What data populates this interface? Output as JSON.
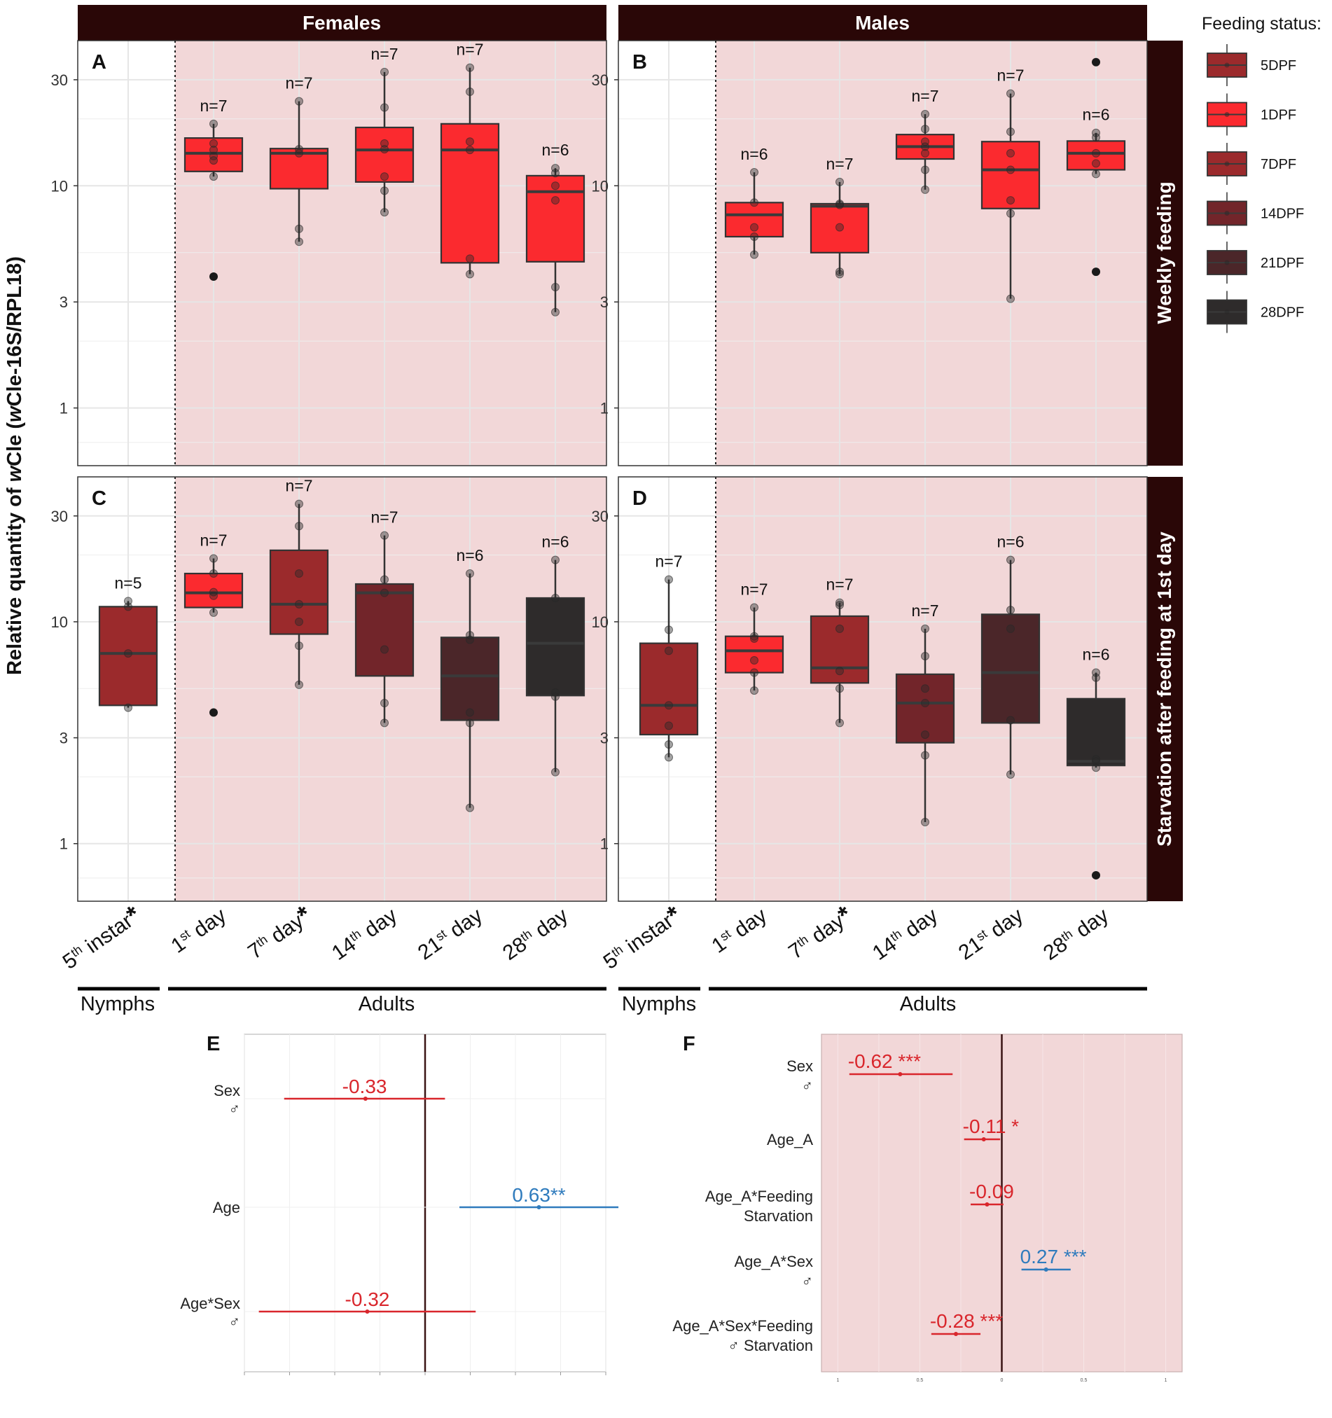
{
  "figure": {
    "y_axis_label_prefix": "Relative quantity of ",
    "y_axis_label_italic1": "w",
    "y_axis_label_mid": "Cle (",
    "y_axis_label_italic2": "w",
    "y_axis_label_suffix": "Cle-16S/RPL18)",
    "strip_females": "Females",
    "strip_males": "Males",
    "strip_weekly": "Weekly feeding",
    "strip_starvation": "Starvation after feeding at 1st day",
    "group_nymphs": "Nymphs",
    "group_adults": "Adults",
    "panel_letters": [
      "A",
      "B",
      "C",
      "D",
      "E",
      "F"
    ]
  },
  "x_labels": [
    {
      "num": "5",
      "sup": "th",
      "rest": " instar",
      "star": "*"
    },
    {
      "num": "1",
      "sup": "st",
      "rest": " day",
      "star": ""
    },
    {
      "num": "7",
      "sup": "th",
      "rest": " day",
      "star": "*"
    },
    {
      "num": "14",
      "sup": "th",
      "rest": " day",
      "star": ""
    },
    {
      "num": "21",
      "sup": "st",
      "rest": " day",
      "star": ""
    },
    {
      "num": "28",
      "sup": "th",
      "rest": " day",
      "star": ""
    }
  ],
  "legend": {
    "title": "Feeding status:",
    "items": [
      {
        "label": "5DPF",
        "color": "#9b2a2c"
      },
      {
        "label": "1DPF",
        "color": "#fb2a2f"
      },
      {
        "label": "7DPF",
        "color": "#9b2a2c"
      },
      {
        "label": "14DPF",
        "color": "#72252a"
      },
      {
        "label": "21DPF",
        "color": "#4b2629"
      },
      {
        "label": "28DPF",
        "color": "#2e2b2b"
      }
    ]
  },
  "chart_data": [
    {
      "panel": "A",
      "type": "box",
      "scale": "log10",
      "yticks": [
        1,
        3,
        10,
        30
      ],
      "ylim": [
        0.55,
        45
      ],
      "boxes": [
        {
          "pos": 1,
          "n": "n=7",
          "color": "#fb2a2f",
          "q1": 11.6,
          "med": 14.0,
          "q3": 16.4,
          "wlo": 11.0,
          "whi": 19.0,
          "points": [
            11.0,
            13.0,
            13.6,
            14.5,
            15.5,
            19.0
          ],
          "outliers": [
            3.9
          ]
        },
        {
          "pos": 2,
          "n": "n=7",
          "color": "#fb2a2f",
          "q1": 9.7,
          "med": 14.0,
          "q3": 14.7,
          "wlo": 5.6,
          "whi": 24.0,
          "points": [
            5.6,
            6.4,
            14.0,
            14.6,
            24.0
          ],
          "outliers": []
        },
        {
          "pos": 3,
          "n": "n=7",
          "color": "#fb2a2f",
          "q1": 10.4,
          "med": 14.5,
          "q3": 18.3,
          "wlo": 7.6,
          "whi": 32.5,
          "points": [
            7.6,
            9.5,
            11.0,
            14.6,
            15.5,
            22.5,
            32.5
          ],
          "outliers": []
        },
        {
          "pos": 4,
          "n": "n=7",
          "color": "#fb2a2f",
          "q1": 4.5,
          "med": 14.5,
          "q3": 19.0,
          "wlo": 4.0,
          "whi": 34.0,
          "points": [
            4.0,
            4.7,
            14.5,
            15.8,
            26.5,
            34.0
          ],
          "outliers": []
        },
        {
          "pos": 5,
          "n": "n=6",
          "color": "#fb2a2f",
          "q1": 4.55,
          "med": 9.4,
          "q3": 11.1,
          "wlo": 2.7,
          "whi": 12.0,
          "points": [
            2.7,
            3.5,
            8.6,
            10.0,
            11.4,
            12.0
          ],
          "outliers": []
        }
      ]
    },
    {
      "panel": "B",
      "type": "box",
      "scale": "log10",
      "yticks": [
        1,
        3,
        10,
        30
      ],
      "ylim": [
        0.55,
        45
      ],
      "boxes": [
        {
          "pos": 1,
          "n": "n=6",
          "color": "#fb2a2f",
          "q1": 5.9,
          "med": 7.4,
          "q3": 8.4,
          "wlo": 4.9,
          "whi": 11.5,
          "points": [
            4.9,
            5.9,
            6.5,
            8.4,
            11.5
          ],
          "outliers": []
        },
        {
          "pos": 2,
          "n": "n=7",
          "color": "#fb2a2f",
          "q1": 5.0,
          "med": 8.1,
          "q3": 8.3,
          "wlo": 4.0,
          "whi": 10.4,
          "points": [
            4.0,
            4.1,
            6.5,
            8.2,
            8.3,
            10.4
          ],
          "outliers": []
        },
        {
          "pos": 3,
          "n": "n=7",
          "color": "#fb2a2f",
          "q1": 13.2,
          "med": 15.0,
          "q3": 17.0,
          "wlo": 9.6,
          "whi": 21.0,
          "points": [
            9.6,
            11.8,
            14.0,
            15.0,
            15.8,
            18.0,
            21.0
          ],
          "outliers": []
        },
        {
          "pos": 4,
          "n": "n=7",
          "color": "#fb2a2f",
          "q1": 7.9,
          "med": 11.8,
          "q3": 15.8,
          "wlo": 3.1,
          "whi": 26.0,
          "points": [
            3.1,
            7.5,
            8.6,
            11.8,
            14.0,
            17.5,
            26.0
          ],
          "outliers": []
        },
        {
          "pos": 5,
          "n": "n=6",
          "color": "#fb2a2f",
          "q1": 11.8,
          "med": 14.0,
          "q3": 15.9,
          "wlo": 11.3,
          "whi": 17.3,
          "points": [
            11.3,
            12.6,
            14.0,
            16.5,
            17.3
          ],
          "outliers": [
            4.1,
            36.0
          ]
        }
      ]
    },
    {
      "panel": "C",
      "type": "box",
      "scale": "log10",
      "yticks": [
        1,
        3,
        10,
        30
      ],
      "ylim": [
        0.55,
        45
      ],
      "boxes": [
        {
          "pos": 0,
          "n": "n=5",
          "color": "#9b2a2c",
          "q1": 4.2,
          "med": 7.2,
          "q3": 11.7,
          "wlo": 4.1,
          "whi": 12.4,
          "points": [
            4.1,
            7.2,
            11.7,
            12.4
          ],
          "outliers": []
        },
        {
          "pos": 1,
          "n": "n=7",
          "color": "#fb2a2f",
          "q1": 11.6,
          "med": 13.5,
          "q3": 16.5,
          "wlo": 11.0,
          "whi": 19.3,
          "points": [
            11.0,
            13.1,
            13.6,
            16.5,
            19.3
          ],
          "outliers": [
            3.9
          ]
        },
        {
          "pos": 2,
          "n": "n=7",
          "color": "#9b2a2c",
          "q1": 8.8,
          "med": 12.0,
          "q3": 21.0,
          "wlo": 5.2,
          "whi": 34.0,
          "points": [
            5.2,
            7.8,
            10.0,
            12.0,
            16.5,
            27.0,
            34.0
          ],
          "outliers": []
        },
        {
          "pos": 3,
          "n": "n=7",
          "color": "#72252a",
          "q1": 5.7,
          "med": 13.5,
          "q3": 14.8,
          "wlo": 3.5,
          "whi": 24.5,
          "points": [
            3.5,
            4.3,
            7.5,
            13.5,
            15.5,
            24.5
          ],
          "outliers": []
        },
        {
          "pos": 4,
          "n": "n=6",
          "color": "#4b2629",
          "q1": 3.6,
          "med": 5.7,
          "q3": 8.5,
          "wlo": 1.45,
          "whi": 16.5,
          "points": [
            1.45,
            3.5,
            3.9,
            8.3,
            8.7,
            16.5
          ],
          "outliers": []
        },
        {
          "pos": 5,
          "n": "n=6",
          "color": "#2e2b2b",
          "q1": 4.65,
          "med": 8.0,
          "q3": 12.8,
          "wlo": 2.1,
          "whi": 19.0,
          "points": [
            2.1,
            4.6,
            4.8,
            12.8,
            19.0
          ],
          "outliers": []
        }
      ]
    },
    {
      "panel": "D",
      "type": "box",
      "scale": "log10",
      "yticks": [
        1,
        3,
        10,
        30
      ],
      "ylim": [
        0.55,
        45
      ],
      "boxes": [
        {
          "pos": 0,
          "n": "n=7",
          "color": "#9b2a2c",
          "q1": 3.1,
          "med": 4.2,
          "q3": 8.0,
          "wlo": 2.45,
          "whi": 15.5,
          "points": [
            2.45,
            2.8,
            3.4,
            4.2,
            7.4,
            9.2,
            15.5
          ],
          "outliers": []
        },
        {
          "pos": 1,
          "n": "n=7",
          "color": "#fb2a2f",
          "q1": 5.9,
          "med": 7.4,
          "q3": 8.6,
          "wlo": 4.9,
          "whi": 11.6,
          "points": [
            4.9,
            5.9,
            6.7,
            8.4,
            8.6,
            11.6
          ],
          "outliers": []
        },
        {
          "pos": 2,
          "n": "n=7",
          "color": "#9b2a2c",
          "q1": 5.3,
          "med": 6.2,
          "q3": 10.6,
          "wlo": 3.5,
          "whi": 12.2,
          "points": [
            3.5,
            5.0,
            6.0,
            9.3,
            11.9,
            12.2
          ],
          "outliers": []
        },
        {
          "pos": 3,
          "n": "n=7",
          "color": "#72252a",
          "q1": 2.85,
          "med": 4.3,
          "q3": 5.8,
          "wlo": 1.25,
          "whi": 9.3,
          "points": [
            1.25,
            2.5,
            3.1,
            4.3,
            5.0,
            7.0,
            9.3
          ],
          "outliers": []
        },
        {
          "pos": 4,
          "n": "n=6",
          "color": "#4b2629",
          "q1": 3.5,
          "med": 5.9,
          "q3": 10.8,
          "wlo": 2.05,
          "whi": 19.0,
          "points": [
            2.05,
            3.6,
            9.3,
            11.3,
            19.0
          ],
          "outliers": []
        },
        {
          "pos": 5,
          "n": "n=6",
          "color": "#2e2b2b",
          "q1": 2.25,
          "med": 2.35,
          "q3": 4.5,
          "wlo": 2.2,
          "whi": 5.9,
          "points": [
            2.2,
            2.35,
            2.4,
            5.6,
            5.9
          ],
          "outliers": [
            0.72
          ]
        }
      ]
    },
    {
      "panel": "E",
      "type": "coefficient",
      "xlim": [
        -1,
        1
      ],
      "rows": [
        {
          "label": "Sex",
          "sub": "♂",
          "est": -0.33,
          "lo": -0.78,
          "hi": 0.11,
          "text": "-0.33",
          "color": "#d9262c"
        },
        {
          "label": "Age",
          "sub": "",
          "est": 0.63,
          "lo": 0.19,
          "hi": 1.07,
          "text": "0.63**",
          "color": "#2f7bbd"
        },
        {
          "label": "Age*Sex",
          "sub": "♂",
          "est": -0.32,
          "lo": -0.92,
          "hi": 0.28,
          "text": "-0.32",
          "color": "#d9262c"
        }
      ]
    },
    {
      "panel": "F",
      "type": "coefficient",
      "xlim": [
        -1.1,
        1.1
      ],
      "rows": [
        {
          "label": "Sex",
          "sub": "♂",
          "est": -0.62,
          "lo": -0.93,
          "hi": -0.3,
          "text": "-0.62 ***",
          "color": "#d9262c"
        },
        {
          "label": "Age_A",
          "sub": "",
          "est": -0.11,
          "lo": -0.23,
          "hi": -0.01,
          "text": "-0.11 *",
          "color": "#d9262c"
        },
        {
          "label": "Age_A*Feeding",
          "sub": "Starvation",
          "est": -0.09,
          "lo": -0.19,
          "hi": 0.01,
          "text": "-0.09",
          "color": "#d9262c"
        },
        {
          "label": "Age_A*Sex",
          "sub": "♂",
          "est": 0.27,
          "lo": 0.12,
          "hi": 0.42,
          "text": "0.27 ***",
          "color": "#2f7bbd"
        },
        {
          "label": "Age_A*Sex*Feeding",
          "sub": "♂ Starvation",
          "est": -0.28,
          "lo": -0.43,
          "hi": -0.13,
          "text": "-0.28 ***",
          "color": "#d9262c"
        }
      ],
      "x_tick_labels": [
        "1",
        "0.5",
        "0",
        "0.5",
        "1"
      ]
    }
  ]
}
